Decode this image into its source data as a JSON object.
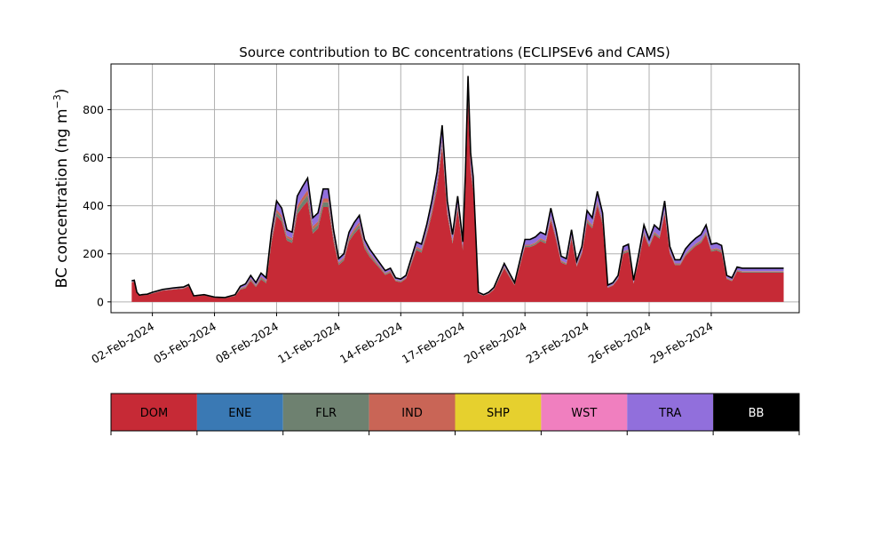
{
  "chart_data": {
    "type": "area",
    "title": "Source contribution to BC concentrations (ECLIPSEv6 and CAMS)",
    "ylabel": "BC concentration (ng m",
    "ylabel_sup": "−3",
    "ylabel_close": ")",
    "xlabel": "",
    "ylim": [
      -45,
      990
    ],
    "xlim": [
      "2024-01-31T00:00",
      "2024-03-04T06:00"
    ],
    "y_ticks": [
      0,
      200,
      400,
      600,
      800
    ],
    "x_ticks": [
      "02-Feb-2024",
      "05-Feb-2024",
      "08-Feb-2024",
      "11-Feb-2024",
      "14-Feb-2024",
      "17-Feb-2024",
      "20-Feb-2024",
      "23-Feb-2024",
      "26-Feb-2024",
      "29-Feb-2024"
    ],
    "grid": true,
    "legend_placement": "below",
    "series": [
      {
        "name": "DOM",
        "color": "#c62a36"
      },
      {
        "name": "ENE",
        "color": "#3a79b4"
      },
      {
        "name": "FLR",
        "color": "#6e8170"
      },
      {
        "name": "IND",
        "color": "#c96556"
      },
      {
        "name": "SHP",
        "color": "#e6d02e"
      },
      {
        "name": "WST",
        "color": "#f07fbf"
      },
      {
        "name": "TRA",
        "color": "#916fdc"
      },
      {
        "name": "BB",
        "color": "#000000"
      }
    ],
    "x": [
      "2024-02-01",
      "2024-02-01T03",
      "2024-02-01T06",
      "2024-02-01T09",
      "2024-02-01T12",
      "2024-02-01T18",
      "2024-02-02",
      "2024-02-02T12",
      "2024-02-03",
      "2024-02-03T06",
      "2024-02-03T12",
      "2024-02-03T18",
      "2024-02-04",
      "2024-02-04T12",
      "2024-02-05",
      "2024-02-05T12",
      "2024-02-06",
      "2024-02-06T06",
      "2024-02-06T12",
      "2024-02-06T18",
      "2024-02-07",
      "2024-02-07T06",
      "2024-02-07T12",
      "2024-02-07T18",
      "2024-02-08",
      "2024-02-08T06",
      "2024-02-08T12",
      "2024-02-08T18",
      "2024-02-09",
      "2024-02-09T06",
      "2024-02-09T12",
      "2024-02-09T18",
      "2024-02-10",
      "2024-02-10T06",
      "2024-02-10T12",
      "2024-02-10T18",
      "2024-02-11",
      "2024-02-11T06",
      "2024-02-11T12",
      "2024-02-11T18",
      "2024-02-12",
      "2024-02-12T06",
      "2024-02-12T12",
      "2024-02-13",
      "2024-02-13T06",
      "2024-02-13T12",
      "2024-02-13T18",
      "2024-02-14",
      "2024-02-14T06",
      "2024-02-14T12",
      "2024-02-14T18",
      "2024-02-15",
      "2024-02-15T06",
      "2024-02-15T12",
      "2024-02-15T18",
      "2024-02-16",
      "2024-02-16T06",
      "2024-02-16T12",
      "2024-02-16T18",
      "2024-02-17",
      "2024-02-17T03",
      "2024-02-17T06",
      "2024-02-17T09",
      "2024-02-17T12",
      "2024-02-17T18",
      "2024-02-18",
      "2024-02-18T06",
      "2024-02-18T12",
      "2024-02-19",
      "2024-02-19T12",
      "2024-02-20",
      "2024-02-20T06",
      "2024-02-20T12",
      "2024-02-20T18",
      "2024-02-21",
      "2024-02-21T06",
      "2024-02-21T12",
      "2024-02-21T18",
      "2024-02-22",
      "2024-02-22T06",
      "2024-02-22T12",
      "2024-02-22T18",
      "2024-02-23",
      "2024-02-23T06",
      "2024-02-23T12",
      "2024-02-23T18",
      "2024-02-24",
      "2024-02-24T06",
      "2024-02-24T12",
      "2024-02-24T18",
      "2024-02-25",
      "2024-02-25T06",
      "2024-02-25T12",
      "2024-02-25T18",
      "2024-02-26",
      "2024-02-26T06",
      "2024-02-26T12",
      "2024-02-26T18",
      "2024-02-27",
      "2024-02-27T06",
      "2024-02-27T12",
      "2024-02-27T18",
      "2024-02-28",
      "2024-02-28T06",
      "2024-02-28T12",
      "2024-02-28T18",
      "2024-02-29",
      "2024-02-29T06",
      "2024-02-29T12",
      "2024-02-29T18",
      "2024-03-01",
      "2024-03-01T06",
      "2024-03-01T12",
      "2024-03-01T18",
      "2024-03-02",
      "2024-03-02T06",
      "2024-03-02T12",
      "2024-03-02T18",
      "2024-03-03",
      "2024-03-03T06",
      "2024-03-03T12"
    ],
    "total": [
      88,
      90,
      40,
      28,
      30,
      32,
      40,
      52,
      58,
      60,
      62,
      72,
      25,
      30,
      20,
      18,
      30,
      65,
      75,
      110,
      80,
      120,
      100,
      290,
      420,
      390,
      300,
      290,
      440,
      480,
      515,
      350,
      370,
      470,
      470,
      300,
      180,
      200,
      290,
      330,
      360,
      260,
      220,
      160,
      130,
      140,
      100,
      95,
      110,
      180,
      250,
      240,
      320,
      420,
      540,
      735,
      420,
      280,
      440,
      250,
      540,
      940,
      620,
      520,
      40,
      30,
      40,
      60,
      160,
      80,
      260,
      260,
      270,
      290,
      280,
      390,
      300,
      190,
      180,
      300,
      170,
      230,
      380,
      350,
      460,
      370,
      70,
      80,
      110,
      230,
      240,
      90,
      200,
      320,
      260,
      320,
      300,
      420,
      230,
      175,
      175,
      220,
      245,
      265,
      280,
      320,
      240,
      245,
      235,
      110,
      100,
      145,
      140,
      140,
      140,
      140,
      140,
      140,
      140,
      140,
      140
    ],
    "tra": [
      4,
      4,
      3,
      2,
      2,
      2,
      3,
      3,
      4,
      4,
      4,
      4,
      2,
      2,
      2,
      2,
      3,
      8,
      10,
      12,
      10,
      15,
      12,
      25,
      35,
      30,
      25,
      25,
      40,
      45,
      50,
      35,
      35,
      40,
      40,
      25,
      15,
      15,
      20,
      25,
      28,
      20,
      18,
      12,
      10,
      10,
      8,
      8,
      8,
      14,
      20,
      20,
      25,
      35,
      45,
      60,
      35,
      22,
      35,
      22,
      45,
      70,
      50,
      40,
      4,
      3,
      4,
      5,
      12,
      6,
      22,
      22,
      23,
      25,
      25,
      35,
      28,
      18,
      18,
      25,
      15,
      20,
      35,
      30,
      40,
      32,
      8,
      8,
      10,
      20,
      22,
      9,
      18,
      28,
      22,
      28,
      26,
      38,
      20,
      15,
      15,
      20,
      22,
      23,
      24,
      28,
      21,
      21,
      20,
      10,
      9,
      12,
      12,
      12,
      12,
      12,
      12,
      12,
      12,
      12,
      12
    ],
    "other": [
      3,
      3,
      2,
      1,
      1,
      1,
      2,
      2,
      3,
      3,
      3,
      3,
      1,
      1,
      1,
      1,
      2,
      6,
      8,
      10,
      8,
      12,
      10,
      20,
      28,
      25,
      20,
      20,
      35,
      40,
      45,
      30,
      30,
      35,
      35,
      22,
      12,
      13,
      18,
      22,
      25,
      18,
      15,
      10,
      8,
      8,
      6,
      6,
      6,
      10,
      15,
      15,
      18,
      22,
      28,
      30,
      22,
      15,
      20,
      14,
      25,
      30,
      25,
      20,
      2,
      2,
      3,
      4,
      8,
      5,
      10,
      10,
      10,
      12,
      12,
      15,
      12,
      8,
      8,
      12,
      8,
      10,
      15,
      14,
      18,
      15,
      4,
      4,
      5,
      10,
      10,
      5,
      8,
      12,
      10,
      12,
      11,
      15,
      9,
      7,
      7,
      9,
      10,
      10,
      11,
      12,
      10,
      10,
      10,
      5,
      5,
      6,
      6,
      6,
      6,
      6,
      6,
      6,
      6,
      6,
      6
    ]
  },
  "legend": {
    "items": [
      {
        "label": "DOM",
        "color": "#c62a36",
        "text_color": "#000000"
      },
      {
        "label": "ENE",
        "color": "#3a79b4",
        "text_color": "#000000"
      },
      {
        "label": "FLR",
        "color": "#6e8170",
        "text_color": "#000000"
      },
      {
        "label": "IND",
        "color": "#c96556",
        "text_color": "#000000"
      },
      {
        "label": "SHP",
        "color": "#e6d02e",
        "text_color": "#000000"
      },
      {
        "label": "WST",
        "color": "#f07fbf",
        "text_color": "#000000"
      },
      {
        "label": "TRA",
        "color": "#916fdc",
        "text_color": "#000000"
      },
      {
        "label": "BB",
        "color": "#000000",
        "text_color": "#ffffff"
      }
    ]
  }
}
